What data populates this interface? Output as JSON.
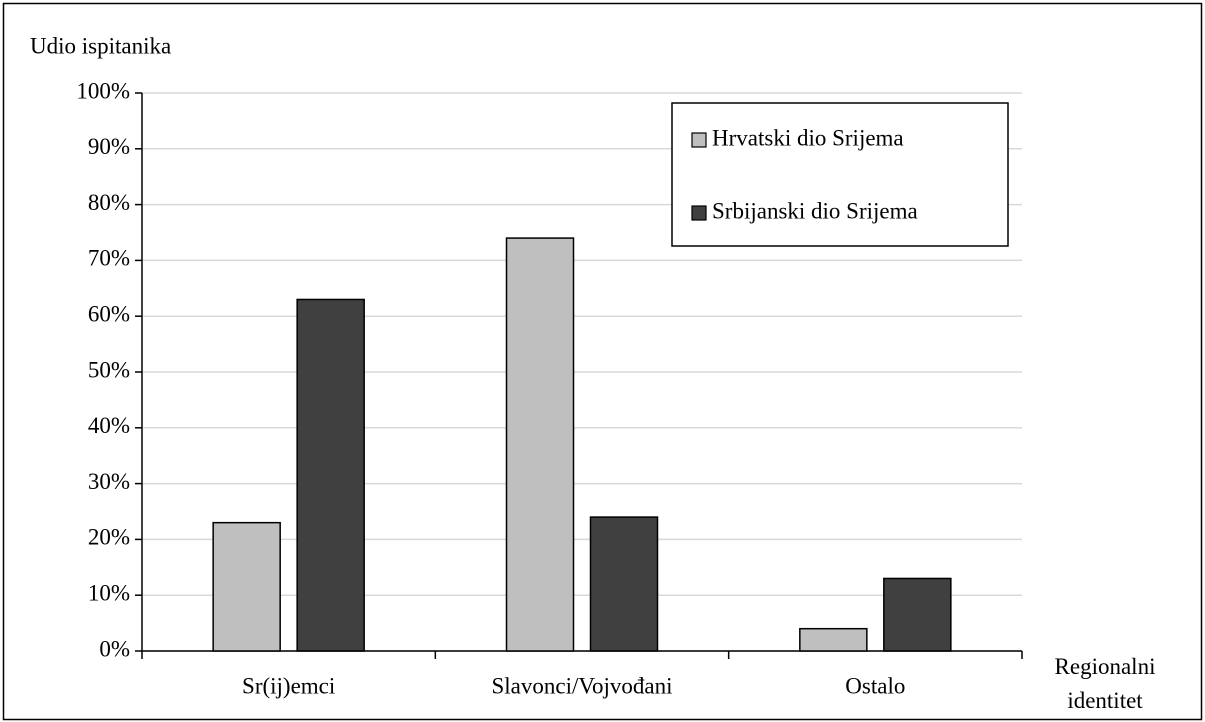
{
  "chart_data": {
    "type": "bar",
    "y_label": "Udio ispitanika",
    "x_label": "Regionalni identitet",
    "categories": [
      "Sr(ij)emci",
      "Slavonci/Vojvođani",
      "Ostalo"
    ],
    "series": [
      {
        "name": "Hrvatski dio Srijema",
        "color": "#bfbfbf",
        "values": [
          23,
          74,
          4
        ]
      },
      {
        "name": "Srbijanski dio Srijema",
        "color": "#404040",
        "values": [
          63,
          24,
          13
        ]
      }
    ],
    "ylim": [
      0,
      100
    ],
    "yticks": [
      {
        "value": 0,
        "label": "0%"
      },
      {
        "value": 10,
        "label": "10%"
      },
      {
        "value": 20,
        "label": "20%"
      },
      {
        "value": 30,
        "label": "30%"
      },
      {
        "value": 40,
        "label": "40%"
      },
      {
        "value": 50,
        "label": "50%"
      },
      {
        "value": 60,
        "label": "60%"
      },
      {
        "value": 70,
        "label": "70%"
      },
      {
        "value": 80,
        "label": "80%"
      },
      {
        "value": 90,
        "label": "90%"
      },
      {
        "value": 100,
        "label": "100%"
      }
    ],
    "grid": true,
    "legend": "top-right"
  }
}
